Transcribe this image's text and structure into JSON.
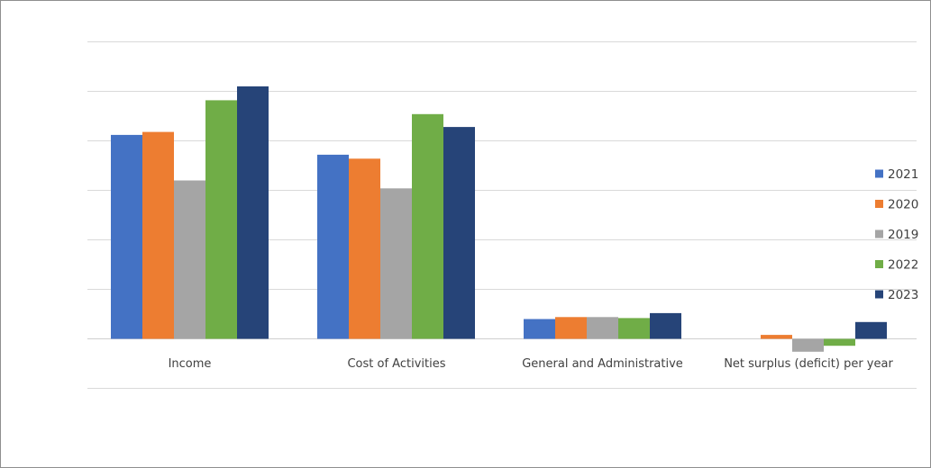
{
  "chart_data": {
    "type": "bar",
    "categories": [
      "Income",
      "Cost of Activities",
      "General and Administrative",
      "Net surplus (deficit) per year"
    ],
    "series": [
      {
        "name": "2021",
        "color": "#4472C4",
        "values": [
          206,
          186,
          20,
          0
        ]
      },
      {
        "name": "2020",
        "color": "#ED7D31",
        "values": [
          209,
          182,
          22,
          4
        ]
      },
      {
        "name": "2019",
        "color": "#A5A5A5",
        "values": [
          160,
          152,
          22,
          -13
        ]
      },
      {
        "name": "2022",
        "color": "#70AD47",
        "values": [
          241,
          227,
          21,
          -7
        ]
      },
      {
        "name": "2023",
        "color": "#264478",
        "values": [
          255,
          214,
          26,
          17
        ]
      }
    ],
    "ylim": [
      -50,
      300
    ],
    "grid": true,
    "legend_position": "right",
    "title": "",
    "xlabel": "",
    "ylabel": ""
  }
}
